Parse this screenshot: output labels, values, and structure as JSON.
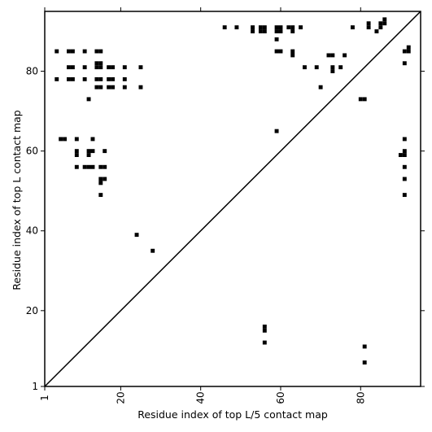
{
  "chart_data": {
    "type": "scatter",
    "title": "",
    "xlabel": "Residue index of top L/5 contact map",
    "ylabel": "Residue index of top L contact map",
    "xlim": [
      1,
      95
    ],
    "ylim": [
      1,
      95
    ],
    "xticks": [
      1,
      20,
      40,
      60,
      80
    ],
    "yticks": [
      1,
      20,
      40,
      60,
      80
    ],
    "xtick_labels": [
      "1",
      "20",
      "40",
      "60",
      "80"
    ],
    "ytick_labels": [
      "1",
      "20",
      "40",
      "60",
      "80"
    ],
    "xtick_rotation": -90,
    "grid": false,
    "diagonal": true,
    "marker": "square",
    "marker_color": "#000000",
    "upper_triangle_points": [
      [
        4,
        85
      ],
      [
        4,
        78
      ],
      [
        5,
        63
      ],
      [
        6,
        63
      ],
      [
        7,
        85
      ],
      [
        8,
        85
      ],
      [
        7,
        81
      ],
      [
        8,
        81
      ],
      [
        7,
        78
      ],
      [
        8,
        78
      ],
      [
        9,
        63
      ],
      [
        9,
        60
      ],
      [
        9,
        59
      ],
      [
        9,
        56
      ],
      [
        11,
        85
      ],
      [
        11,
        81
      ],
      [
        11,
        78
      ],
      [
        12,
        73
      ],
      [
        11,
        56
      ],
      [
        12,
        56
      ],
      [
        12,
        60
      ],
      [
        13,
        60
      ],
      [
        12,
        59
      ],
      [
        13,
        56
      ],
      [
        13,
        63
      ],
      [
        14,
        85
      ],
      [
        15,
        85
      ],
      [
        14,
        82
      ],
      [
        15,
        82
      ],
      [
        14,
        81
      ],
      [
        15,
        81
      ],
      [
        14,
        78
      ],
      [
        15,
        78
      ],
      [
        14,
        76
      ],
      [
        15,
        76
      ],
      [
        15,
        56
      ],
      [
        16,
        56
      ],
      [
        15,
        53
      ],
      [
        16,
        53
      ],
      [
        15,
        52
      ],
      [
        16,
        60
      ],
      [
        15,
        49
      ],
      [
        17,
        81
      ],
      [
        18,
        81
      ],
      [
        17,
        78
      ],
      [
        18,
        78
      ],
      [
        17,
        76
      ],
      [
        18,
        76
      ],
      [
        21,
        81
      ],
      [
        21,
        78
      ],
      [
        21,
        76
      ],
      [
        25,
        81
      ],
      [
        25,
        76
      ],
      [
        24,
        39
      ],
      [
        28,
        35
      ],
      [
        46,
        91
      ],
      [
        49,
        91
      ],
      [
        53,
        91
      ],
      [
        53,
        90
      ],
      [
        55,
        91
      ],
      [
        56,
        91
      ],
      [
        55,
        90
      ],
      [
        56,
        90
      ],
      [
        59,
        91
      ],
      [
        60,
        91
      ],
      [
        59,
        90
      ],
      [
        60,
        90
      ],
      [
        59,
        88
      ],
      [
        59,
        85
      ],
      [
        60,
        85
      ],
      [
        59,
        65
      ],
      [
        62,
        91
      ],
      [
        63,
        91
      ],
      [
        63,
        90
      ],
      [
        63,
        85
      ],
      [
        63,
        84
      ],
      [
        65,
        91
      ],
      [
        66,
        81
      ],
      [
        69,
        81
      ],
      [
        70,
        76
      ],
      [
        72,
        84
      ],
      [
        73,
        84
      ],
      [
        73,
        81
      ],
      [
        73,
        80
      ],
      [
        75,
        81
      ],
      [
        76,
        84
      ],
      [
        78,
        91
      ]
    ],
    "lower_triangle_points": [
      [
        56,
        16
      ],
      [
        56,
        15
      ],
      [
        56,
        12
      ],
      [
        80,
        73
      ],
      [
        81,
        73
      ],
      [
        81,
        11
      ],
      [
        81,
        7
      ],
      [
        82,
        92
      ],
      [
        82,
        91
      ],
      [
        84,
        90
      ],
      [
        85,
        92
      ],
      [
        85,
        91
      ],
      [
        86,
        93
      ],
      [
        86,
        92
      ],
      [
        90,
        59
      ],
      [
        91,
        60
      ],
      [
        91,
        59
      ],
      [
        91,
        63
      ],
      [
        91,
        56
      ],
      [
        91,
        53
      ],
      [
        91,
        49
      ],
      [
        91,
        85
      ],
      [
        92,
        86
      ],
      [
        92,
        85
      ],
      [
        91,
        82
      ]
    ]
  }
}
